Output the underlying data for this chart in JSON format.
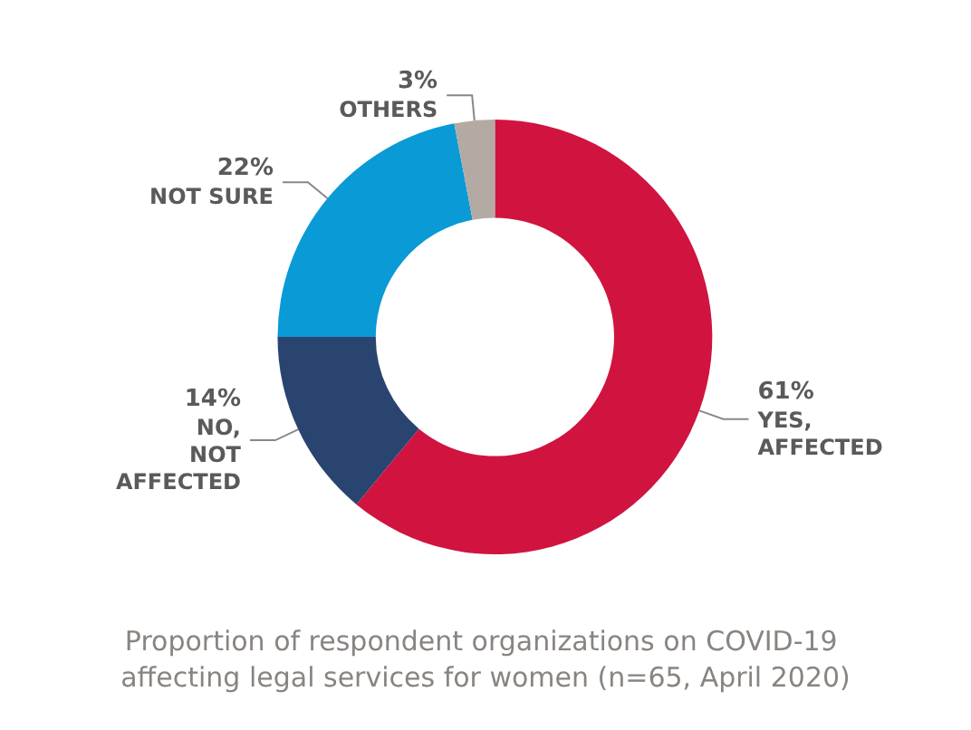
{
  "chart_data": {
    "type": "donut",
    "title": "Proportion of respondent organizations on COVID-19 affecting legal services for women (n=65, April 2020)",
    "categories": [
      "YES,\nAFFECTED",
      "NO,\nNOT\nAFFECTED",
      "NOT SURE",
      "OTHERS"
    ],
    "values": [
      61,
      14,
      22,
      3
    ],
    "value_labels": [
      "61%",
      "14%",
      "22%",
      "3%"
    ],
    "colors": [
      "#d0143f",
      "#2a4470",
      "#0a9ad6",
      "#b3aaa3"
    ],
    "legend": false
  }
}
